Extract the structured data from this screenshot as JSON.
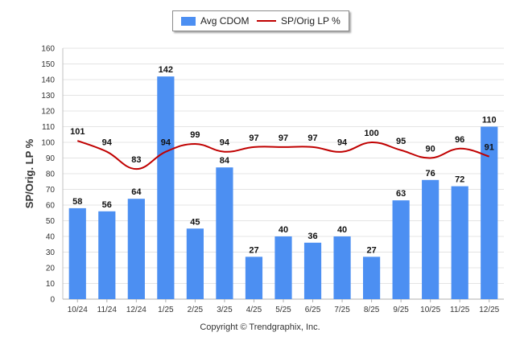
{
  "chart_data": {
    "type": "bar+line",
    "categories": [
      "10/24",
      "11/24",
      "12/24",
      "1/25",
      "2/25",
      "3/25",
      "4/25",
      "5/25",
      "6/25",
      "7/25",
      "8/25",
      "9/25",
      "10/25",
      "11/25",
      "12/25"
    ],
    "series": [
      {
        "name": "Avg CDOM",
        "type": "bar",
        "color": "#4c8ff2",
        "values": [
          58,
          56,
          64,
          142,
          45,
          84,
          27,
          40,
          36,
          40,
          27,
          63,
          76,
          72,
          110
        ]
      },
      {
        "name": "SP/Orig LP %",
        "type": "line",
        "color": "#c00000",
        "values": [
          101,
          94,
          83,
          94,
          99,
          94,
          97,
          97,
          97,
          94,
          100,
          95,
          90,
          96,
          91
        ]
      }
    ],
    "ylabel": "SP/Orig. LP %",
    "xlabel": "",
    "ylim": [
      0,
      160
    ],
    "yticks": [
      0,
      10,
      20,
      30,
      40,
      50,
      60,
      70,
      80,
      90,
      100,
      110,
      120,
      130,
      140,
      150,
      160
    ],
    "grid": true,
    "legend_position": "top-center"
  },
  "legend": {
    "bar_label": "Avg CDOM",
    "line_label": "SP/Orig LP %"
  },
  "footer": {
    "copyright": "Copyright © Trendgraphix, Inc."
  }
}
